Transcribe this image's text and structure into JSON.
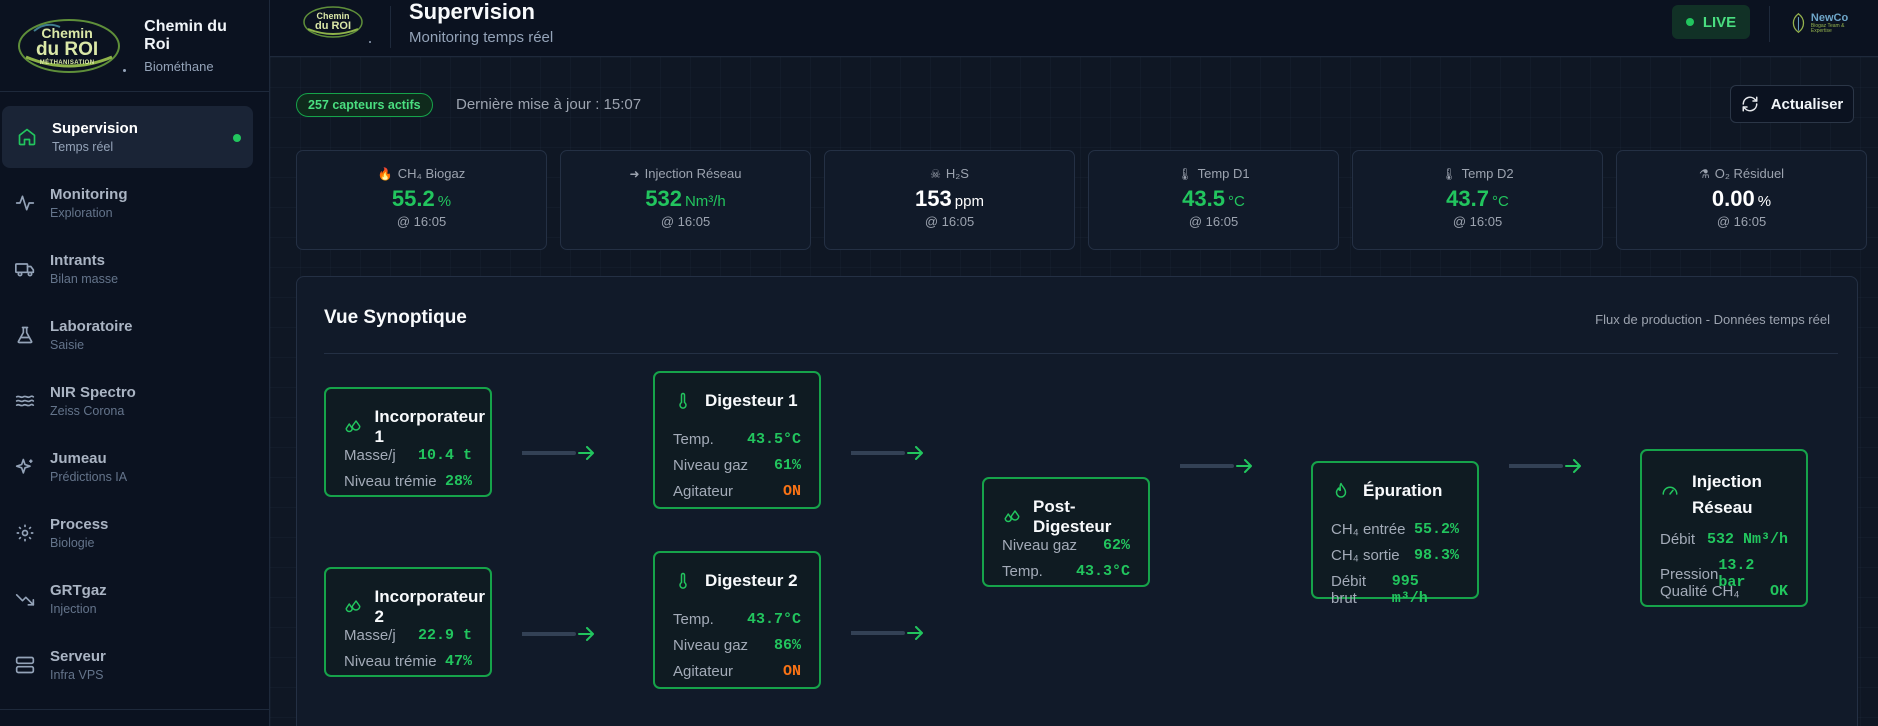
{
  "brand": {
    "title": "Chemin du Roi",
    "subtitle": "Biométhane",
    "logo_line1": "Chemin",
    "logo_line2": "du ROI",
    "logo_line3": "MÉTHANISATION"
  },
  "nav": {
    "items": [
      {
        "label": "Supervision",
        "sub": "Temps réel",
        "icon": "home-icon",
        "active": true
      },
      {
        "label": "Monitoring",
        "sub": "Exploration",
        "icon": "activity-icon"
      },
      {
        "label": "Intrants",
        "sub": "Bilan masse",
        "icon": "truck-icon"
      },
      {
        "label": "Laboratoire",
        "sub": "Saisie",
        "icon": "flask-icon"
      },
      {
        "label": "NIR Spectro",
        "sub": "Zeiss Corona",
        "icon": "waves-icon"
      },
      {
        "label": "Jumeau",
        "sub": "Prédictions IA",
        "icon": "sparkles-icon"
      },
      {
        "label": "Process",
        "sub": "Biologie",
        "icon": "gear-icon"
      },
      {
        "label": "GRTgaz",
        "sub": "Injection",
        "icon": "trending-down-icon"
      },
      {
        "label": "Serveur",
        "sub": "Infra VPS",
        "icon": "server-icon"
      }
    ]
  },
  "header": {
    "title": "Supervision",
    "subtitle": "Monitoring temps réel",
    "live_label": "LIVE",
    "partner_name": "NewCo",
    "partner_tagline": "Biogaz Team & Expertise"
  },
  "status": {
    "sensors_badge": "257 capteurs actifs",
    "last_update": "Dernière mise à jour : 15:07",
    "refresh_label": "Actualiser"
  },
  "kpis": [
    {
      "icon": "🔥",
      "label": "CH₄ Biogaz",
      "value": "55.2",
      "unit": "%",
      "time": "@ 16:05",
      "color": "#22c55e"
    },
    {
      "icon": "➜",
      "label": "Injection Réseau",
      "value": "532",
      "unit": "Nm³/h",
      "time": "@ 16:05",
      "color": "#22c55e"
    },
    {
      "icon": "☠",
      "label": "H₂S",
      "value": "153",
      "unit": "ppm",
      "time": "@ 16:05",
      "color": "#ffffff"
    },
    {
      "icon": "🌡",
      "label": "Temp D1",
      "value": "43.5",
      "unit": "°C",
      "time": "@ 16:05",
      "color": "#22c55e"
    },
    {
      "icon": "🌡",
      "label": "Temp D2",
      "value": "43.7",
      "unit": "°C",
      "time": "@ 16:05",
      "color": "#22c55e"
    },
    {
      "icon": "⚗",
      "label": "O₂ Résiduel",
      "value": "0.00",
      "unit": "%",
      "time": "@ 16:05",
      "color": "#ffffff"
    }
  ],
  "synoptic": {
    "title": "Vue Synoptique",
    "subtitle": "Flux de production - Données temps réel",
    "nodes": {
      "inc1": {
        "title": "Incorporateur 1",
        "rows": [
          {
            "label": "Masse/j",
            "value": "10.4 t"
          },
          {
            "label": "Niveau trémie",
            "value": "28%"
          }
        ]
      },
      "inc2": {
        "title": "Incorporateur 2",
        "rows": [
          {
            "label": "Masse/j",
            "value": "22.9 t"
          },
          {
            "label": "Niveau trémie",
            "value": "47%"
          }
        ]
      },
      "dig1": {
        "title": "Digesteur 1",
        "rows": [
          {
            "label": "Temp.",
            "value": "43.5°C"
          },
          {
            "label": "Niveau gaz",
            "value": "61%"
          },
          {
            "label": "Agitateur",
            "value": "ON"
          }
        ]
      },
      "dig2": {
        "title": "Digesteur 2",
        "rows": [
          {
            "label": "Temp.",
            "value": "43.7°C"
          },
          {
            "label": "Niveau gaz",
            "value": "86%"
          },
          {
            "label": "Agitateur",
            "value": "ON"
          }
        ]
      },
      "post": {
        "title": "Post-Digesteur",
        "rows": [
          {
            "label": "Niveau gaz",
            "value": "62%"
          },
          {
            "label": "Temp.",
            "value": "43.3°C"
          }
        ]
      },
      "epur": {
        "title": "Épuration",
        "rows": [
          {
            "label": "CH₄ entrée",
            "value": "55.2%"
          },
          {
            "label": "CH₄ sortie",
            "value": "98.3%"
          },
          {
            "label": "Débit brut",
            "value": "995 m³/h"
          }
        ]
      },
      "inj": {
        "title_line1": "Injection",
        "title_line2": "Réseau",
        "rows": [
          {
            "label": "Débit",
            "value": "532 Nm³/h"
          },
          {
            "label": "Pression",
            "value": "13.2 bar"
          },
          {
            "label": "Qualité CH₄",
            "value": "OK"
          }
        ]
      }
    }
  },
  "colors": {
    "accent": "#22c55e",
    "warning": "#f97316",
    "background": "#0f1724"
  }
}
